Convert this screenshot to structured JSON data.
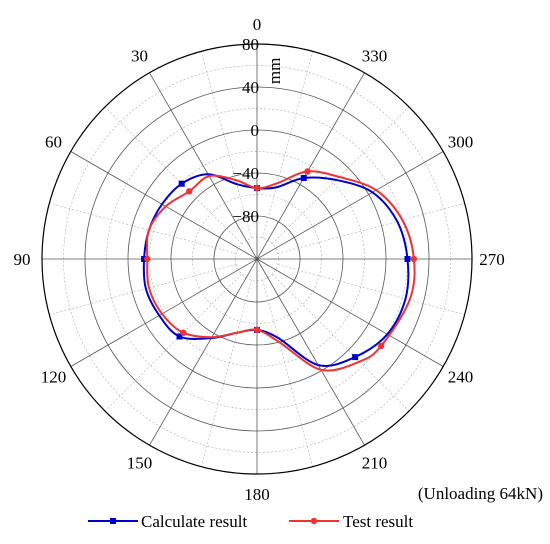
{
  "chart_data": {
    "type": "polar-line",
    "title": "",
    "annotation": "(Unloading 64kN)",
    "radial_unit": "mm",
    "radial_axis": {
      "min": -120,
      "max": 80,
      "tick_labels": [
        "80",
        "40",
        "0",
        "−40",
        "−80"
      ],
      "tick_values": [
        80,
        40,
        0,
        -40,
        -80
      ]
    },
    "angular_axis": {
      "tick_labels": [
        "0",
        "30",
        "60",
        "90",
        "120",
        "150",
        "180",
        "210",
        "240",
        "270",
        "300",
        "330"
      ],
      "tick_values": [
        0,
        30,
        60,
        90,
        120,
        150,
        180,
        210,
        240,
        270,
        300,
        330
      ],
      "direction": "counterclockwise",
      "zero_at": "top"
    },
    "grid": true,
    "legend_position": "bottom",
    "series": [
      {
        "name": "Calculate result",
        "color": "#0000cc",
        "marker": "square",
        "points": [
          {
            "angle": 0,
            "r": -54,
            "marker": true
          },
          {
            "angle": 15,
            "r": -48,
            "marker": false
          },
          {
            "angle": 30,
            "r": -29,
            "marker": false
          },
          {
            "angle": 45,
            "r": -21,
            "marker": true
          },
          {
            "angle": 60,
            "r": -18,
            "marker": false
          },
          {
            "angle": 75,
            "r": -16,
            "marker": false
          },
          {
            "angle": 90,
            "r": -15,
            "marker": true
          },
          {
            "angle": 105,
            "r": -13,
            "marker": false
          },
          {
            "angle": 120,
            "r": -15,
            "marker": false
          },
          {
            "angle": 135,
            "r": -18,
            "marker": true
          },
          {
            "angle": 150,
            "r": -35,
            "marker": false
          },
          {
            "angle": 165,
            "r": -49,
            "marker": false
          },
          {
            "angle": 180,
            "r": -54,
            "marker": true
          },
          {
            "angle": 195,
            "r": -44,
            "marker": false
          },
          {
            "angle": 210,
            "r": -6,
            "marker": false
          },
          {
            "angle": 225,
            "r": 9,
            "marker": true
          },
          {
            "angle": 240,
            "r": 20,
            "marker": false
          },
          {
            "angle": 255,
            "r": 23,
            "marker": false
          },
          {
            "angle": 270,
            "r": 20,
            "marker": true
          },
          {
            "angle": 285,
            "r": 15,
            "marker": false
          },
          {
            "angle": 300,
            "r": 4,
            "marker": false
          },
          {
            "angle": 315,
            "r": -16,
            "marker": false
          },
          {
            "angle": 330,
            "r": -33,
            "marker": true
          },
          {
            "angle": 345,
            "r": -51,
            "marker": false
          }
        ]
      },
      {
        "name": "Test result",
        "color": "#ee3333",
        "marker": "circle",
        "points": [
          {
            "angle": 0,
            "r": -54,
            "marker": true
          },
          {
            "angle": 15,
            "r": -44,
            "marker": false
          },
          {
            "angle": 30,
            "r": -31,
            "marker": false
          },
          {
            "angle": 45,
            "r": -31,
            "marker": true
          },
          {
            "angle": 60,
            "r": -22,
            "marker": false
          },
          {
            "angle": 75,
            "r": -16,
            "marker": false
          },
          {
            "angle": 90,
            "r": -18,
            "marker": true
          },
          {
            "angle": 105,
            "r": -16,
            "marker": false
          },
          {
            "angle": 120,
            "r": -18,
            "marker": false
          },
          {
            "angle": 135,
            "r": -23,
            "marker": true
          },
          {
            "angle": 150,
            "r": -36,
            "marker": false
          },
          {
            "angle": 165,
            "r": -49,
            "marker": false
          },
          {
            "angle": 180,
            "r": -54,
            "marker": true
          },
          {
            "angle": 195,
            "r": -40,
            "marker": false
          },
          {
            "angle": 210,
            "r": -1,
            "marker": false
          },
          {
            "angle": 225,
            "r": 15,
            "marker": false
          },
          {
            "angle": 235,
            "r": 21,
            "marker": true
          },
          {
            "angle": 255,
            "r": 27,
            "marker": false
          },
          {
            "angle": 270,
            "r": 26,
            "marker": true
          },
          {
            "angle": 285,
            "r": 20,
            "marker": false
          },
          {
            "angle": 300,
            "r": 8,
            "marker": false
          },
          {
            "angle": 315,
            "r": -12,
            "marker": false
          },
          {
            "angle": 330,
            "r": -26,
            "marker": true
          },
          {
            "angle": 345,
            "r": -47,
            "marker": false
          }
        ]
      }
    ]
  }
}
